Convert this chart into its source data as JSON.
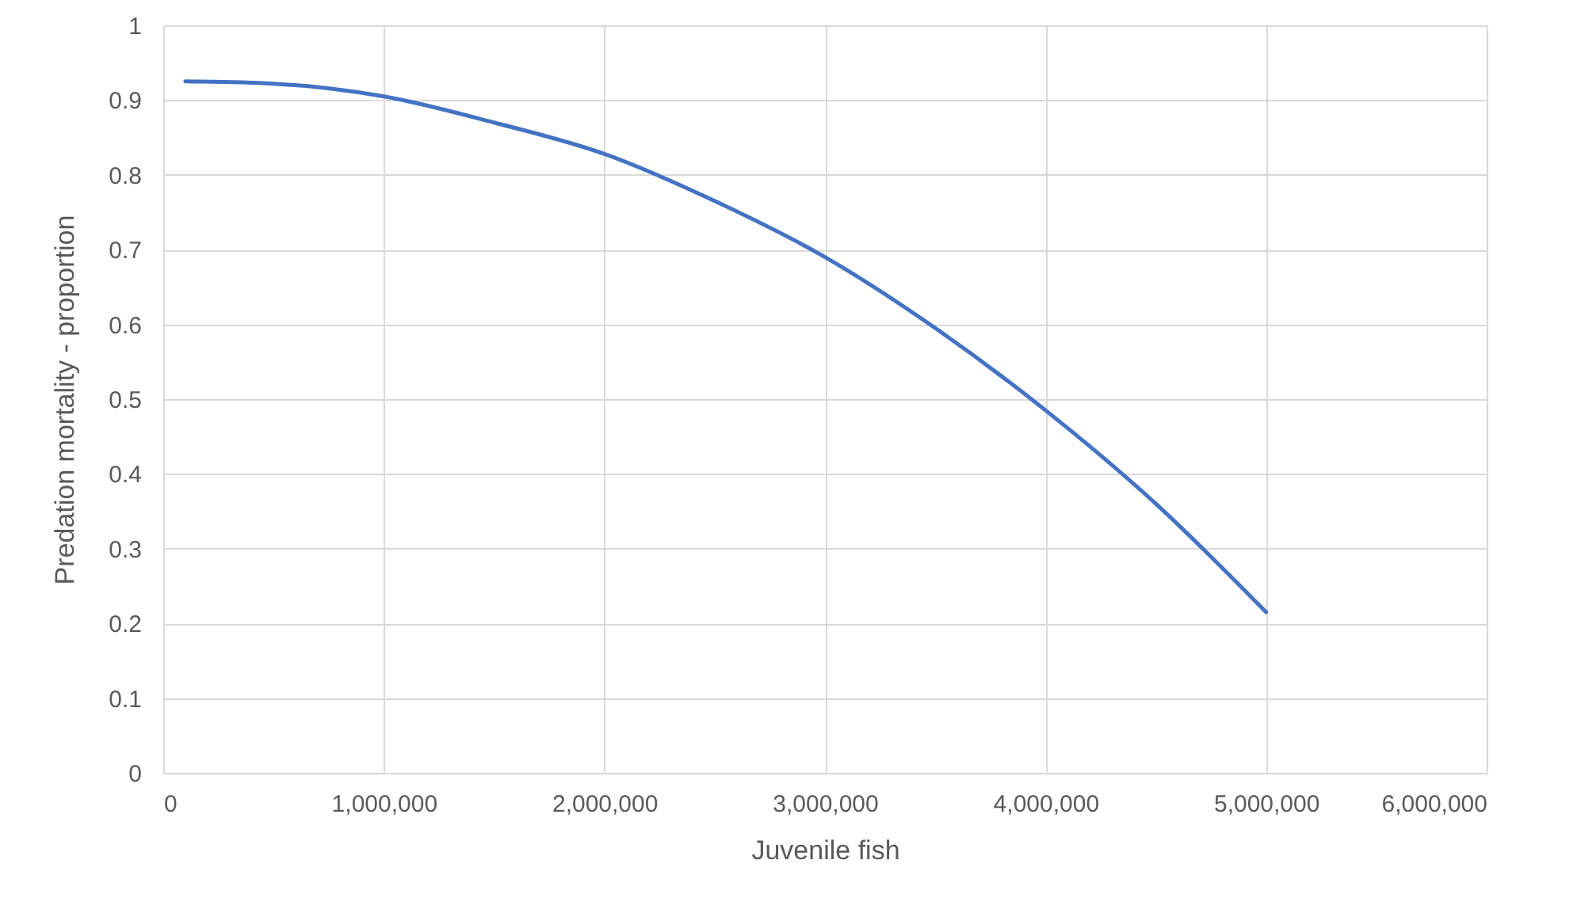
{
  "chart_data": {
    "type": "line",
    "xlabel": "Juvenile fish",
    "ylabel": "Predation mortality - proportion",
    "x": [
      100000,
      500000,
      1000000,
      1500000,
      2000000,
      2500000,
      3000000,
      3500000,
      4000000,
      4500000,
      5000000
    ],
    "series": [
      {
        "color": "#4472c4",
        "values": [
          0.925,
          0.922,
          0.905,
          0.87,
          0.828,
          0.765,
          0.69,
          0.595,
          0.485,
          0.36,
          0.215
        ]
      }
    ],
    "xlim": [
      0,
      6000000
    ],
    "xticks": [
      0,
      {
        "value": 1000000,
        "label": "1,000,000"
      },
      {
        "value": 2000000,
        "label": "2,000,000"
      },
      {
        "value": 3000000,
        "label": "3,000,000"
      },
      {
        "value": 4000000,
        "label": "4,000,000"
      },
      {
        "value": 5000000,
        "label": "5,000,000"
      },
      {
        "value": 6000000,
        "label": "6,000,000"
      }
    ],
    "ylim": [
      0,
      1
    ],
    "yticks": [
      0,
      0.1,
      0.2,
      0.3,
      0.4,
      0.5,
      0.6,
      0.7,
      0.8,
      0.9,
      1
    ],
    "grid": true,
    "marker": "none",
    "line_style": "solid"
  }
}
